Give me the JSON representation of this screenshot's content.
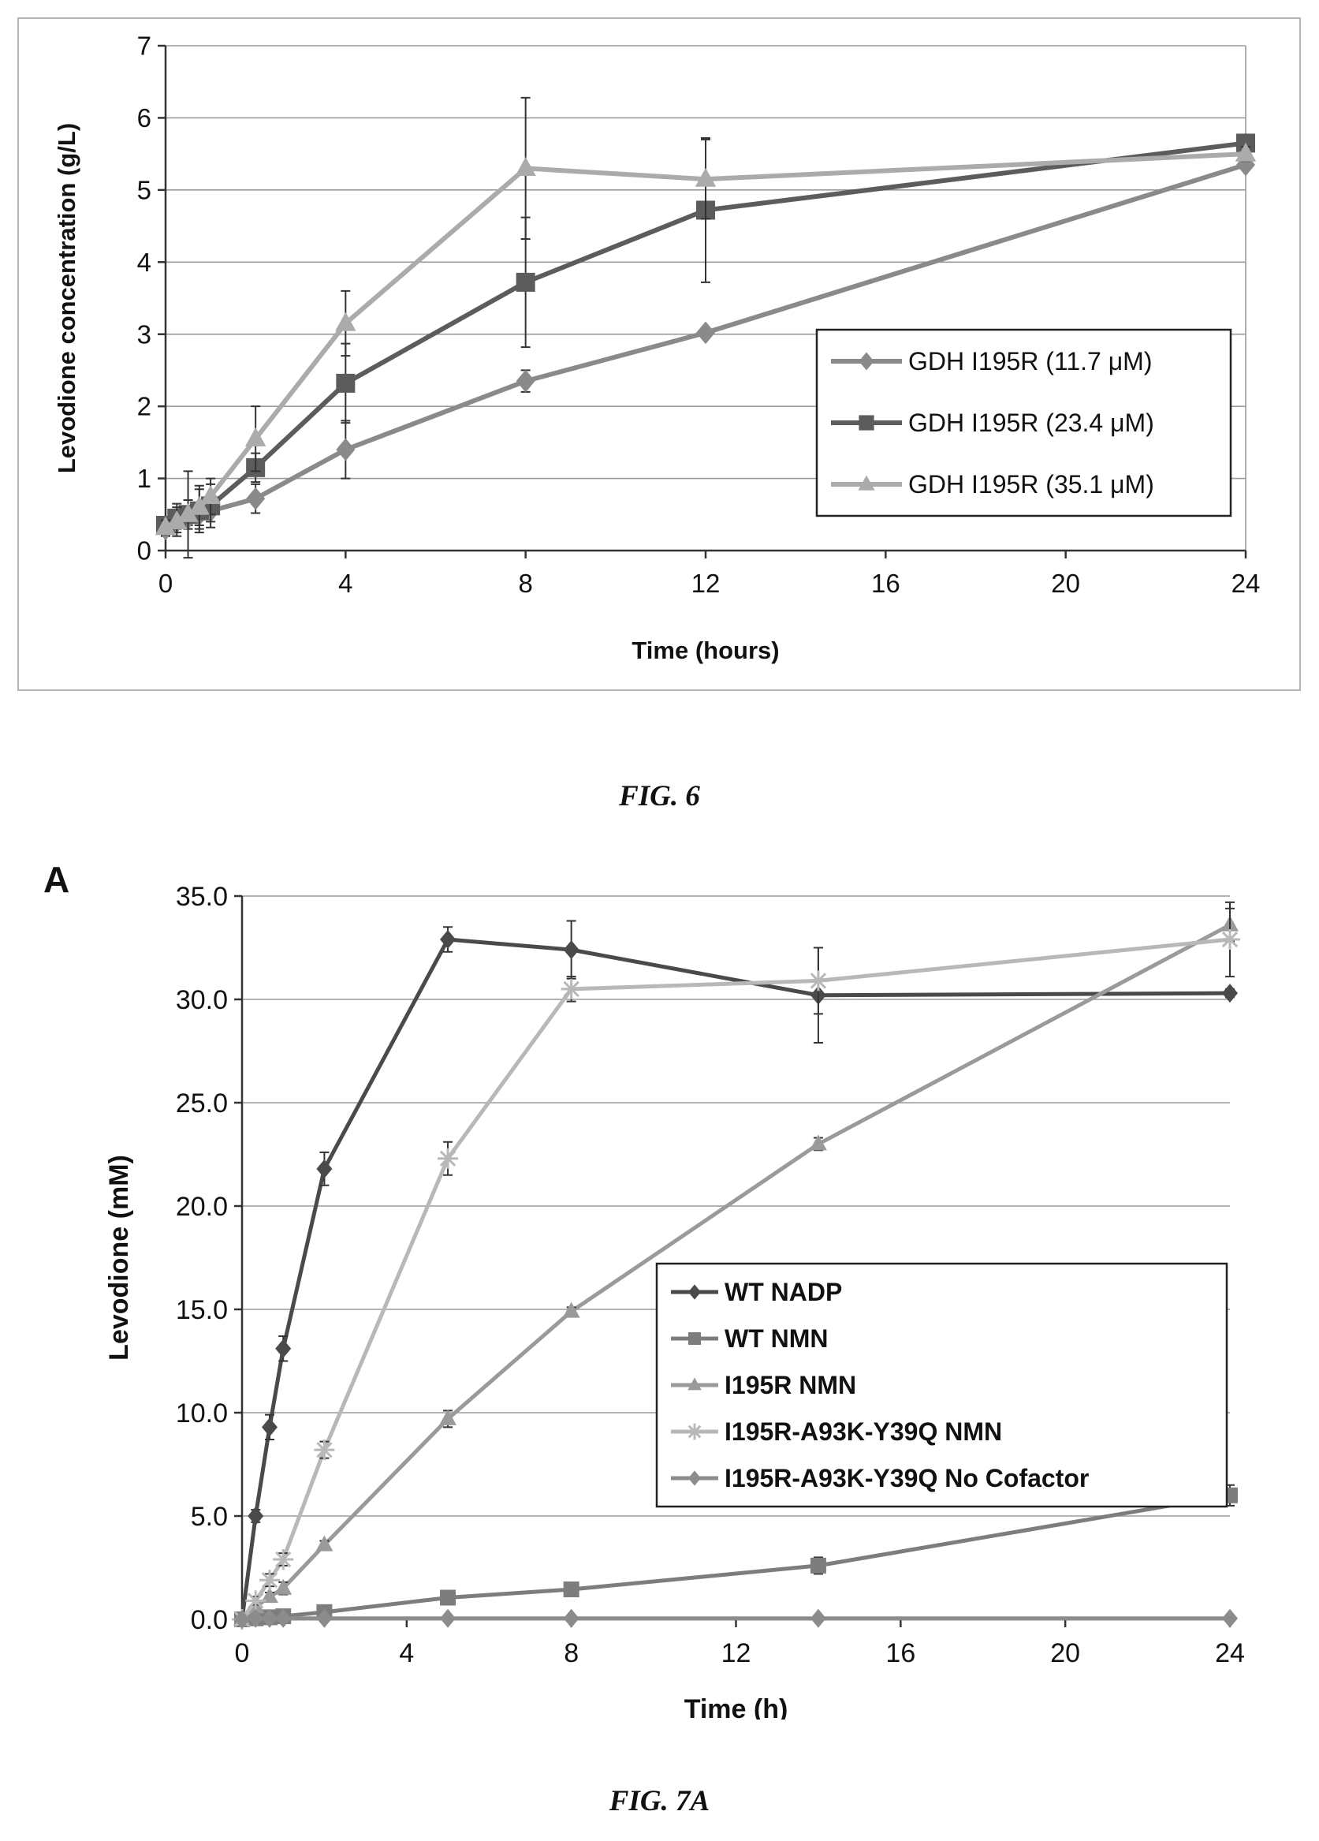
{
  "figures": {
    "fig6_caption": "FIG. 6",
    "fig7a_caption": "FIG. 7A",
    "fig7a_panel": "A"
  },
  "chart_data": [
    {
      "type": "line",
      "xlabel": "Time (hours)",
      "ylabel": "Levodione concentration (g/L)",
      "xlim": [
        0,
        24
      ],
      "ylim": [
        0,
        7
      ],
      "xticks": [
        0,
        4,
        8,
        12,
        16,
        20,
        24
      ],
      "yticks": [
        0,
        1,
        2,
        3,
        4,
        5,
        6,
        7
      ],
      "grid": "horizontal",
      "legend_position": "right",
      "series": [
        {
          "name": "GDH I195R (11.7 μM)",
          "marker": "diamond",
          "color": "#8a8a8a",
          "x": [
            0,
            0.25,
            0.5,
            0.75,
            1,
            2,
            4,
            8,
            12,
            24
          ],
          "y": [
            0.3,
            0.4,
            0.45,
            0.5,
            0.55,
            0.72,
            1.4,
            2.35,
            3.02,
            5.35
          ],
          "err": [
            0.1,
            0.1,
            0.1,
            0.15,
            0.15,
            0.2,
            0.4,
            0.15,
            0.05,
            0.05
          ]
        },
        {
          "name": "GDH I195R (23.4 μM)",
          "marker": "square",
          "color": "#5c5c5c",
          "x": [
            0,
            0.25,
            0.5,
            0.75,
            1,
            2,
            4,
            8,
            12,
            24
          ],
          "y": [
            0.35,
            0.45,
            0.5,
            0.55,
            0.62,
            1.15,
            2.32,
            3.72,
            4.72,
            5.65
          ],
          "err": [
            0.1,
            0.2,
            0.6,
            0.3,
            0.3,
            0.2,
            0.55,
            0.9,
            1.0,
            0.1
          ]
        },
        {
          "name": "GDH I195R (35.1 μM)",
          "marker": "triangle",
          "color": "#ababab",
          "x": [
            0,
            0.25,
            0.5,
            0.75,
            1,
            2,
            4,
            8,
            12,
            24
          ],
          "y": [
            0.32,
            0.4,
            0.5,
            0.6,
            0.75,
            1.55,
            3.15,
            5.3,
            5.15,
            5.5
          ],
          "err": [
            0.1,
            0.2,
            0.2,
            0.3,
            0.25,
            0.45,
            0.45,
            0.98,
            0.55,
            0.1
          ]
        }
      ]
    },
    {
      "type": "line",
      "xlabel": "Time (h)",
      "ylabel": "Levodione (mM)",
      "xlim": [
        0,
        24
      ],
      "ylim": [
        0,
        35
      ],
      "xticks": [
        0,
        4,
        8,
        12,
        16,
        20,
        24
      ],
      "yticks": [
        "0.0",
        "5.0",
        "10.0",
        "15.0",
        "20.0",
        "25.0",
        "30.0",
        "35.0"
      ],
      "grid": "horizontal",
      "legend_position": "right",
      "series": [
        {
          "name": "WT NADP",
          "marker": "diamond",
          "color": "#4a4a4a",
          "x": [
            0,
            0.33,
            0.67,
            1,
            2,
            5,
            8,
            14,
            24
          ],
          "y": [
            0,
            5,
            9.3,
            13.1,
            21.8,
            32.9,
            32.4,
            30.2,
            30.3
          ],
          "err": [
            0,
            0.3,
            0.6,
            0.6,
            0.8,
            0.6,
            1.4,
            2.3,
            0.2
          ]
        },
        {
          "name": "WT NMN",
          "marker": "square",
          "color": "#7d7d7d",
          "x": [
            0,
            0.33,
            0.67,
            1,
            2,
            5,
            8,
            14,
            24
          ],
          "y": [
            0,
            0.05,
            0.1,
            0.15,
            0.35,
            1.05,
            1.45,
            2.6,
            6.0
          ],
          "err": [
            0,
            0,
            0,
            0,
            0.1,
            0.3,
            0.2,
            0.4,
            0.5
          ]
        },
        {
          "name": "I195R NMN",
          "marker": "triangle",
          "color": "#9a9a9a",
          "x": [
            0,
            0.33,
            0.67,
            1,
            2,
            5,
            8,
            14,
            24
          ],
          "y": [
            0,
            0.6,
            1.1,
            1.5,
            3.6,
            9.7,
            14.9,
            23.0,
            33.6
          ],
          "err": [
            0,
            0.1,
            0.2,
            0.3,
            0.2,
            0.4,
            0.2,
            0.3,
            0.8
          ]
        },
        {
          "name": "I195R-A93K-Y39Q NMN",
          "marker": "star",
          "color": "#b8b8b8",
          "x": [
            0,
            0.33,
            0.67,
            1,
            2,
            5,
            8,
            14,
            24
          ],
          "y": [
            0,
            0.9,
            1.9,
            2.9,
            8.2,
            22.3,
            30.5,
            30.9,
            32.9
          ],
          "err": [
            0,
            0.2,
            0.3,
            0.3,
            0.4,
            0.8,
            0.6,
            1.6,
            1.8
          ]
        },
        {
          "name": "I195R-A93K-Y39Q No Cofactor",
          "marker": "diamond",
          "color": "#8c8c8c",
          "x": [
            0,
            0.33,
            0.67,
            1,
            2,
            5,
            8,
            14,
            24
          ],
          "y": [
            0,
            0.05,
            0.05,
            0.05,
            0.05,
            0.05,
            0.05,
            0.05,
            0.05
          ],
          "err": [
            0,
            0,
            0,
            0,
            0,
            0,
            0,
            0,
            0
          ]
        }
      ]
    }
  ]
}
